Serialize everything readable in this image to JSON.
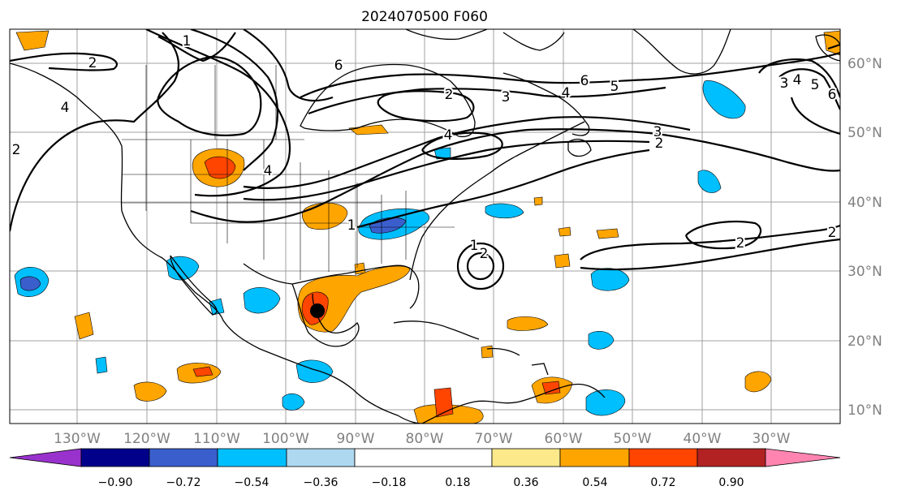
{
  "title": "2024070500 F060",
  "map": {
    "lon_labels": [
      "130°W",
      "120°W",
      "110°W",
      "100°W",
      "90°W",
      "80°W",
      "70°W",
      "60°W",
      "50°W",
      "40°W",
      "30°W"
    ],
    "lat_labels": [
      "60°N",
      "50°N",
      "40°N",
      "30°N",
      "20°N",
      "10°N"
    ],
    "contour_labels": [
      "2",
      "1",
      "2",
      "6",
      "4",
      "2",
      "3",
      "4",
      "6",
      "5",
      "4",
      "3",
      "2",
      "4",
      "3",
      "5",
      "6",
      "2",
      "4",
      "1",
      "2",
      "1",
      "2",
      "2",
      "2"
    ],
    "storm_marker": "black-dot",
    "colors": {
      "contour": "#000000",
      "grid": "#a0a0a0",
      "coast": "#000000"
    }
  },
  "colorbar": {
    "ticks": [
      "−0.90",
      "−0.72",
      "−0.54",
      "−0.36",
      "−0.18",
      "0.18",
      "0.36",
      "0.54",
      "0.72",
      "0.90"
    ],
    "colors": [
      "#9932cc",
      "#00008b",
      "#3a5fcd",
      "#00bfff",
      "#add8f0",
      "#ffffff",
      "#fce98a",
      "#ffa500",
      "#ff4500",
      "#b22222",
      "#ff85b0"
    ]
  }
}
